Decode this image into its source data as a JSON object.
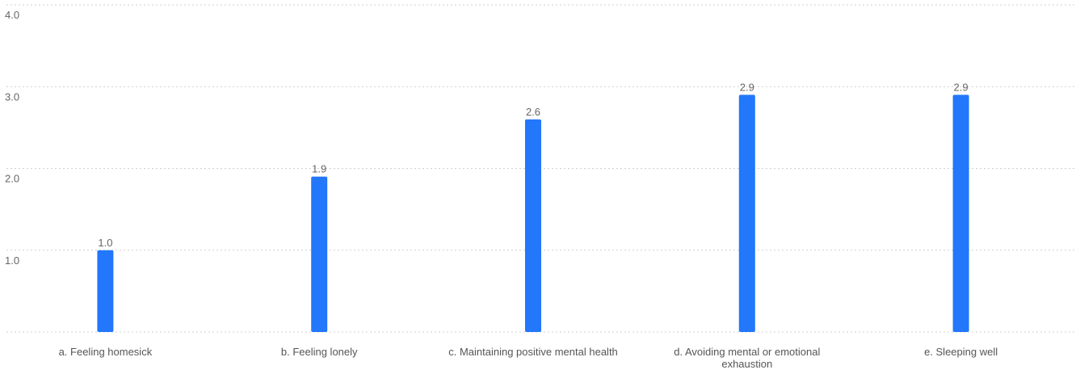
{
  "chart_data": {
    "type": "bar",
    "title": "",
    "xlabel": "",
    "ylabel": "",
    "categories": [
      [
        "a. Feeling homesick"
      ],
      [
        "b. Feeling lonely"
      ],
      [
        "c. Maintaining positive mental health"
      ],
      [
        "d. Avoiding mental or emotional",
        "exhaustion"
      ],
      [
        "e. Sleeping well"
      ]
    ],
    "values": [
      1.0,
      1.9,
      2.6,
      2.9,
      2.9
    ],
    "value_labels": [
      "1.0",
      "1.9",
      "2.6",
      "2.9",
      "2.9"
    ],
    "ylim": [
      0,
      4.0
    ],
    "yticks": [
      1.0,
      2.0,
      3.0,
      4.0
    ],
    "ytick_labels": [
      "1.0",
      "2.0",
      "3.0",
      "4.0"
    ],
    "grid": true,
    "legend": "none",
    "bar_color": "#2277fb"
  }
}
